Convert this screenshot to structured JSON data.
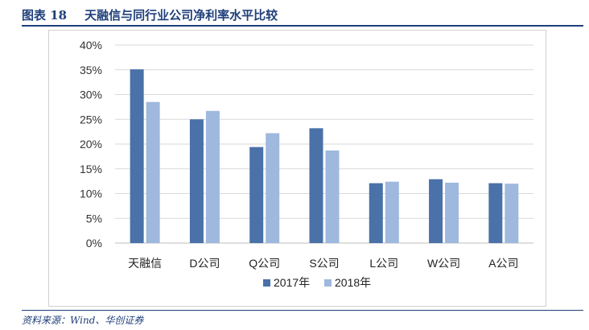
{
  "figure": {
    "label": "图表 18",
    "title": "天融信与同行业公司净利率水平比较",
    "source": "资料来源：Wind、华创证券"
  },
  "colors": {
    "series_2017": "#4a71a8",
    "series_2018": "#9fb8dd",
    "frame": "#1f3f7a"
  },
  "chart_data": {
    "type": "bar",
    "categories": [
      "天融信",
      "D公司",
      "Q公司",
      "S公司",
      "L公司",
      "W公司",
      "A公司"
    ],
    "series": [
      {
        "name": "2017年",
        "values": [
          35.1,
          25.0,
          19.4,
          23.2,
          12.1,
          12.9,
          12.1
        ]
      },
      {
        "name": "2018年",
        "values": [
          28.5,
          26.7,
          22.2,
          18.7,
          12.4,
          12.2,
          12.0
        ]
      }
    ],
    "y_ticks": [
      "0%",
      "5%",
      "10%",
      "15%",
      "20%",
      "25%",
      "30%",
      "35%",
      "40%"
    ],
    "ylim": [
      0,
      40
    ],
    "y_unit": "%",
    "grid": true,
    "legend_position": "bottom"
  }
}
